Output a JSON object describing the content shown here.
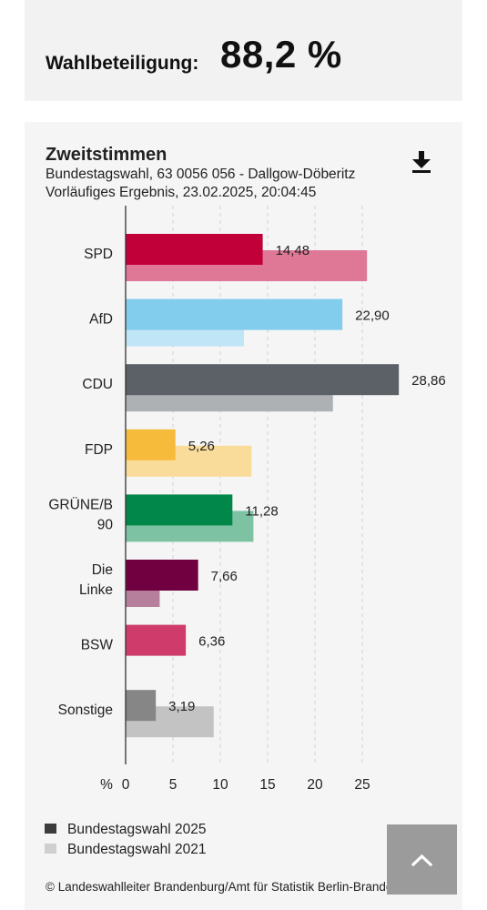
{
  "turnout": {
    "label": "Wahlbeteiligung:",
    "value": "88,2 %"
  },
  "chart_header": {
    "title": "Zweitstimmen",
    "subtitle": "Bundestagswahl, 63 0056 056 - Dallgow-Döberitz",
    "status": "Vorläufiges Ergebnis, 23.02.2025, 20:04:45"
  },
  "download": {
    "icon": "download-icon"
  },
  "chart_data": {
    "type": "bar",
    "orientation": "horizontal",
    "categories": [
      "SPD",
      "AfD",
      "CDU",
      "FDP",
      "GRÜNE/B 90",
      "Die Linke",
      "BSW",
      "Sonstige"
    ],
    "category_lines": [
      [
        "SPD"
      ],
      [
        "AfD"
      ],
      [
        "CDU"
      ],
      [
        "FDP"
      ],
      [
        "GRÜNE/B",
        "90"
      ],
      [
        "Die",
        "Linke"
      ],
      [
        "BSW"
      ],
      [
        "Sonstige"
      ]
    ],
    "series": [
      {
        "name": "Bundestagswahl 2025",
        "values": [
          14.48,
          22.9,
          28.86,
          5.26,
          11.28,
          7.66,
          6.36,
          3.19
        ],
        "labels": [
          "14,48",
          "22,90",
          "28,86",
          "5,26",
          "11,28",
          "7,66",
          "6,36",
          "3,19"
        ],
        "colors": [
          "#c1003a",
          "#82ccee",
          "#5b6167",
          "#f7bb3c",
          "#008749",
          "#700040",
          "#cf3b6b",
          "#868686"
        ]
      },
      {
        "name": "Bundestagswahl 2021",
        "values": [
          25.5,
          12.5,
          21.9,
          13.3,
          13.5,
          3.6,
          null,
          9.3
        ],
        "colors": [
          "#de7896",
          "#c0e5f6",
          "#aeb1b4",
          "#f9dc99",
          "#7dc3a3",
          "#b6809d",
          null,
          "#c3c3c3"
        ]
      }
    ],
    "x_unit": "%",
    "x_ticks": [
      0,
      5,
      10,
      15,
      20,
      25
    ],
    "xlim": [
      0,
      29.5
    ],
    "grid": true
  },
  "legend": {
    "items": [
      {
        "label": "Bundestagswahl 2025",
        "color": "#3c3c3c"
      },
      {
        "label": "Bundestagswahl 2021",
        "color": "#cfcfcf"
      }
    ]
  },
  "footer": {
    "credit": "© Landeswahlleiter Brandenburg/Amt für Statistik Berlin-Brandenburg"
  },
  "scroll_top": {
    "icon": "chevron-up-icon"
  }
}
